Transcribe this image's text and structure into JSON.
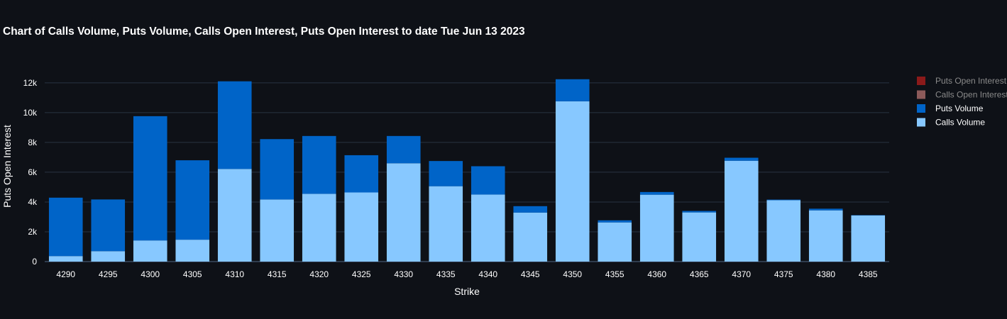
{
  "chart_data": {
    "type": "bar",
    "barmode": "stack",
    "title": "Chart of Calls Volume, Puts Volume, Calls Open Interest, Puts Open Interest to date Tue Jun 13 2023",
    "xlabel": "Strike",
    "ylabel": "Puts Open Interest",
    "ylim": [
      0,
      12800
    ],
    "yticks": [
      0,
      2000,
      4000,
      6000,
      8000,
      10000,
      12000
    ],
    "ytick_labels": [
      "0",
      "2k",
      "4k",
      "6k",
      "8k",
      "10k",
      "12k"
    ],
    "grid": true,
    "legend_position": "right",
    "categories": [
      "4290",
      "4295",
      "4300",
      "4305",
      "4310",
      "4315",
      "4320",
      "4325",
      "4330",
      "4335",
      "4340",
      "4345",
      "4350",
      "4355",
      "4360",
      "4365",
      "4370",
      "4375",
      "4380",
      "4385"
    ],
    "series": [
      {
        "name": "Calls Volume",
        "color": "#87c8ff",
        "values": [
          370,
          700,
          1420,
          1470,
          6220,
          4170,
          4550,
          4640,
          6600,
          5060,
          4500,
          3290,
          10760,
          2630,
          4490,
          3300,
          6770,
          4120,
          3440,
          3100
        ]
      },
      {
        "name": "Puts Volume",
        "color": "#0064c8",
        "values": [
          3920,
          3470,
          8340,
          5330,
          5880,
          4050,
          3880,
          2500,
          1830,
          1690,
          1900,
          430,
          1480,
          140,
          180,
          100,
          200,
          40,
          110,
          20
        ]
      }
    ],
    "legend": [
      {
        "name": "Puts Open Interest",
        "color": "#8b1a1a",
        "hidden": true
      },
      {
        "name": "Calls Open Interest",
        "color": "#8c5a5a",
        "hidden": true
      },
      {
        "name": "Puts Volume",
        "color": "#0064c8",
        "hidden": false
      },
      {
        "name": "Calls Volume",
        "color": "#87c8ff",
        "hidden": false
      }
    ]
  }
}
